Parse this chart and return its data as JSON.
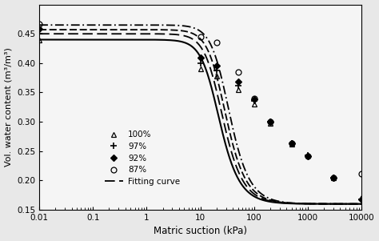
{
  "xlabel": "Matric suction (kPa)",
  "ylabel": "Vol. water content (m³/m³)",
  "xlim": [
    0.01,
    10000
  ],
  "ylim": [
    0.15,
    0.5
  ],
  "yticks": [
    0.15,
    0.2,
    0.25,
    0.3,
    0.35,
    0.4,
    0.45
  ],
  "xtick_labels": [
    "0.01",
    "0.1",
    "1",
    "10",
    "100",
    "1000",
    "10000"
  ],
  "xtick_vals": [
    0.01,
    0.1,
    1,
    10,
    100,
    1000,
    10000
  ],
  "series": [
    {
      "label": "100%",
      "marker": "^",
      "fillstyle": "none",
      "theta_s": 0.44,
      "theta_r": 0.16,
      "alpha": 0.055,
      "n": 2.8,
      "linestyle_key": "solid"
    },
    {
      "label": "97%",
      "marker": "+",
      "fillstyle": "none",
      "theta_s": 0.45,
      "theta_r": 0.16,
      "alpha": 0.048,
      "n": 2.8,
      "linestyle_key": "dashed"
    },
    {
      "label": "92%",
      "marker": "D",
      "fillstyle": "full",
      "theta_s": 0.457,
      "theta_r": 0.16,
      "alpha": 0.042,
      "n": 2.8,
      "linestyle_key": "dashed2"
    },
    {
      "label": "87%",
      "marker": "o",
      "fillstyle": "none",
      "theta_s": 0.465,
      "theta_r": 0.16,
      "alpha": 0.036,
      "n": 2.8,
      "linestyle_key": "dashdot"
    }
  ],
  "scatter_points": {
    "100%": {
      "x": [
        0.01,
        10,
        20,
        50,
        100,
        200,
        500,
        1000,
        3000,
        10000
      ],
      "y": [
        0.44,
        0.39,
        0.378,
        0.355,
        0.33,
        0.298,
        0.262,
        0.243,
        0.205,
        0.17
      ]
    },
    "97%": {
      "x": [
        0.01,
        10,
        20,
        50,
        100,
        200,
        500,
        1000,
        3000,
        10000
      ],
      "y": [
        0.45,
        0.4,
        0.388,
        0.362,
        0.335,
        0.3,
        0.263,
        0.243,
        0.205,
        0.168
      ]
    },
    "92%": {
      "x": [
        0.01,
        10,
        20,
        50,
        100,
        200,
        500,
        1000,
        3000,
        10000
      ],
      "y": [
        0.458,
        0.41,
        0.395,
        0.368,
        0.338,
        0.3,
        0.263,
        0.242,
        0.205,
        0.168
      ]
    },
    "87%": {
      "x": [
        0.01,
        10,
        20,
        50,
        100,
        200,
        500,
        1000,
        3000,
        10000
      ],
      "y": [
        0.466,
        0.445,
        0.435,
        0.385,
        0.34,
        0.3,
        0.263,
        0.242,
        0.205,
        0.212
      ]
    }
  },
  "bg_color": "#e8e8e8",
  "plot_bg": "#f5f5f5"
}
